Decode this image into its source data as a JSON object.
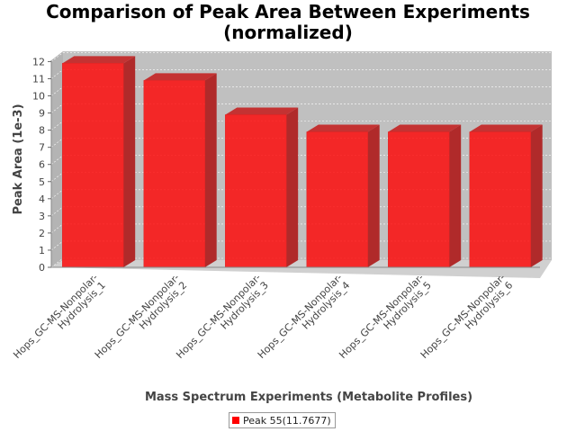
{
  "chart_data": {
    "type": "bar",
    "title_lines": [
      "Comparison of Peak Area Between Experiments",
      "(normalized)"
    ],
    "xlabel": "Mass Spectrum Experiments (Metabolite Profiles)",
    "ylabel": "Peak Area (1e-3)",
    "categories": [
      [
        "Hops_GC-MS-Nonpolar-",
        "Hydrolysis_1"
      ],
      [
        "Hops_GC-MS-Nonpolar-",
        "Hydrolysis_2"
      ],
      [
        "Hops_GC-MS-Nonpolar-",
        "Hydrolysis_3"
      ],
      [
        "Hops_GC-MS-Nonpolar-",
        "Hydrolysis_4"
      ],
      [
        "Hops_GC-MS-Nonpolar-",
        "Hydrolysis_5"
      ],
      [
        "Hops_GC-MS-Nonpolar-",
        "Hydrolysis_6"
      ]
    ],
    "yticks": [
      "0",
      "1",
      "2",
      "3",
      "4",
      "5",
      "6",
      "7",
      "8",
      "9",
      "10",
      "11",
      "12"
    ],
    "ylim": [
      0,
      12.6
    ],
    "grid": true,
    "legend_position": "bottom",
    "series": [
      {
        "name": "Peak 55(11.7677)",
        "color": "#ff0000",
        "values": [
          11.9,
          10.9,
          8.9,
          7.9,
          7.9,
          7.9
        ]
      }
    ]
  }
}
